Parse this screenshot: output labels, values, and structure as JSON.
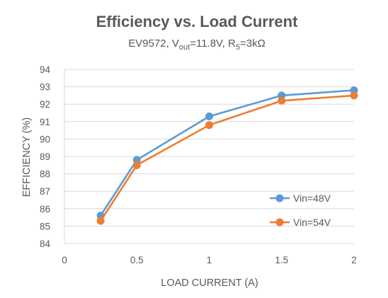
{
  "chart_data": {
    "type": "line",
    "title": "Efficiency vs. Load Current",
    "subtitle": {
      "prefix": "EV9572, V",
      "vout_sub": "out",
      "vout_value": "=11.8V, R",
      "r_sub": "5",
      "r_value": "=3kΩ"
    },
    "xlabel": "LOAD CURRENT (A)",
    "ylabel": "EFFICIENCY (%)",
    "xlim": [
      0,
      2
    ],
    "ylim": [
      84,
      94
    ],
    "x_ticks": [
      "0",
      "0.5",
      "1",
      "1.5",
      "2"
    ],
    "y_ticks": [
      "84",
      "85",
      "86",
      "87",
      "88",
      "89",
      "90",
      "91",
      "92",
      "93",
      "94"
    ],
    "grid": "horizontal",
    "legend_position": "lower-right",
    "series": [
      {
        "name": "Vin=48V",
        "color": "#5b9bd5",
        "x": [
          0.25,
          0.5,
          1.0,
          1.5,
          2.0
        ],
        "y": [
          85.6,
          88.8,
          91.3,
          92.5,
          92.8
        ]
      },
      {
        "name": "Vin=54V",
        "color": "#ed7d31",
        "x": [
          0.25,
          0.5,
          1.0,
          1.5,
          2.0
        ],
        "y": [
          85.3,
          88.5,
          90.8,
          92.2,
          92.5
        ]
      }
    ]
  }
}
